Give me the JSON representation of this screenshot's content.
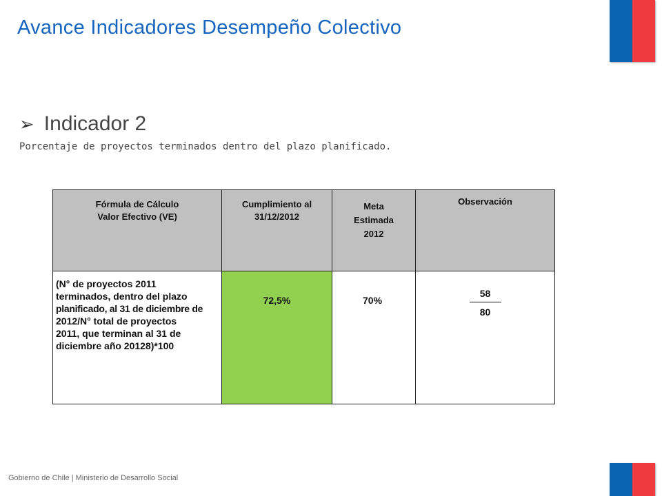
{
  "slide": {
    "title": "Avance Indicadores Desempeño Colectivo",
    "indicator_heading": "Indicador 2",
    "indicator_description": "Porcentaje de proyectos terminados dentro del plazo planificado."
  },
  "table": {
    "headers": {
      "formula_line1": "Fórmula de Cálculo",
      "formula_line2": "Valor Efectivo  (VE)",
      "cumplimiento_line1": "Cumplimiento al",
      "cumplimiento_line2": "31/12/2012",
      "meta_line1": "Meta",
      "meta_line2": "Estimada",
      "meta_line3": "2012",
      "observacion": "Observación"
    },
    "row": {
      "formula_lines": [
        "(N°  de proyectos 2011",
        "terminados, dentro del plazo",
        "planificado, al 31 de diciembre de",
        "2012/N°  total de proyectos",
        "2011, que terminan al 31 de",
        "diciembre año 20128)*100"
      ],
      "cumplimiento": "72,5%",
      "meta": "70%",
      "observacion_numerator": "58",
      "observacion_denominator": "80"
    }
  },
  "footer": {
    "text": "Gobierno de Chile | Ministerio de Desarrollo Social"
  },
  "colors": {
    "title": "#1565c0",
    "header_fill": "#c0c0c0",
    "cumplimiento_fill": "#92d050",
    "flag_blue": "#0a63b0",
    "flag_red": "#ef3b3f"
  },
  "icons": {
    "bullet": "arrow-bullet-icon",
    "flag": "chile-flag-stripe-icon"
  }
}
